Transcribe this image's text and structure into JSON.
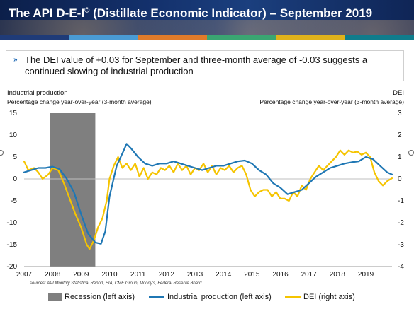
{
  "header": {
    "title_before_sup": "The API D-E-I",
    "title_sup": "©",
    "title_after_sup": " (Distillate Economic Indicator) – September 2019"
  },
  "colors": {
    "band": [
      "#1f3b78",
      "#4a9bd4",
      "#e07b2a",
      "#3aa672",
      "#e0b21b",
      "#0f7c8c"
    ],
    "industrial": "#1f77b4",
    "dei": "#f5c400",
    "recession": "#7f7f7f"
  },
  "summary": {
    "text": "The DEI value of +0.03 for September and three-month average of -0.03 suggests a continued slowing of industrial production"
  },
  "left_axis": {
    "title": "Industrial production",
    "subtitle": "Percentage change year-over-year (3-month average)"
  },
  "right_axis": {
    "title": "DEI",
    "subtitle": "Percentage change year-over-year (3-month average)"
  },
  "sources": "sources: API Monthly Statistical Report, EIA, CME Group, Moody's, Federal Reserve Board",
  "legend": {
    "recession": "Recession (left axis)",
    "industrial": "Industrial production (left axis)",
    "dei": "DEI (right axis)"
  },
  "chart_data": {
    "type": "line",
    "x_range": [
      2007,
      2019.92
    ],
    "x_ticks": [
      "2007",
      "2008",
      "2009",
      "2010",
      "2011",
      "2012",
      "2013",
      "2014",
      "2015",
      "2016",
      "2017",
      "2018",
      "2019"
    ],
    "left_ylim": [
      -20,
      15
    ],
    "left_ticks": [
      "15",
      "10",
      "5",
      "0",
      "-5",
      "-10",
      "-15",
      "-20"
    ],
    "right_ylim": [
      -4,
      3
    ],
    "right_ticks": [
      "3",
      "2",
      "1",
      "0",
      "-1",
      "-2",
      "-3",
      "-4"
    ],
    "recession": {
      "start": 2007.92,
      "end": 2009.5
    },
    "series": [
      {
        "name": "Industrial production (left axis)",
        "axis": "left",
        "points": [
          [
            2007.0,
            1.5
          ],
          [
            2007.25,
            2.0
          ],
          [
            2007.5,
            2.5
          ],
          [
            2007.75,
            2.5
          ],
          [
            2008.0,
            2.8
          ],
          [
            2008.25,
            2.2
          ],
          [
            2008.5,
            0.0
          ],
          [
            2008.75,
            -3.0
          ],
          [
            2009.0,
            -8.0
          ],
          [
            2009.25,
            -12.5
          ],
          [
            2009.5,
            -14.5
          ],
          [
            2009.7,
            -14.8
          ],
          [
            2009.85,
            -12.0
          ],
          [
            2010.0,
            -4.0
          ],
          [
            2010.25,
            3.0
          ],
          [
            2010.5,
            6.5
          ],
          [
            2010.6,
            8.0
          ],
          [
            2010.75,
            7.0
          ],
          [
            2011.0,
            5.0
          ],
          [
            2011.25,
            3.5
          ],
          [
            2011.5,
            3.0
          ],
          [
            2011.75,
            3.5
          ],
          [
            2012.0,
            3.5
          ],
          [
            2012.25,
            4.0
          ],
          [
            2012.5,
            3.5
          ],
          [
            2012.75,
            3.0
          ],
          [
            2013.0,
            2.5
          ],
          [
            2013.25,
            2.0
          ],
          [
            2013.5,
            2.5
          ],
          [
            2013.75,
            3.0
          ],
          [
            2014.0,
            3.0
          ],
          [
            2014.25,
            3.5
          ],
          [
            2014.5,
            4.0
          ],
          [
            2014.75,
            4.2
          ],
          [
            2015.0,
            3.5
          ],
          [
            2015.25,
            2.0
          ],
          [
            2015.5,
            1.0
          ],
          [
            2015.75,
            -1.0
          ],
          [
            2016.0,
            -2.0
          ],
          [
            2016.25,
            -3.5
          ],
          [
            2016.5,
            -3.0
          ],
          [
            2016.75,
            -2.5
          ],
          [
            2017.0,
            -1.0
          ],
          [
            2017.25,
            0.5
          ],
          [
            2017.5,
            1.5
          ],
          [
            2017.75,
            2.5
          ],
          [
            2018.0,
            3.0
          ],
          [
            2018.25,
            3.5
          ],
          [
            2018.5,
            3.8
          ],
          [
            2018.75,
            4.0
          ],
          [
            2019.0,
            5.0
          ],
          [
            2019.25,
            4.5
          ],
          [
            2019.5,
            3.0
          ],
          [
            2019.75,
            1.5
          ],
          [
            2019.92,
            1.0
          ]
        ]
      },
      {
        "name": "DEI (right axis)",
        "axis": "right",
        "points": [
          [
            2007.0,
            0.8
          ],
          [
            2007.15,
            0.4
          ],
          [
            2007.35,
            0.5
          ],
          [
            2007.5,
            0.3
          ],
          [
            2007.65,
            0.0
          ],
          [
            2007.85,
            0.2
          ],
          [
            2008.0,
            0.5
          ],
          [
            2008.2,
            0.4
          ],
          [
            2008.4,
            -0.2
          ],
          [
            2008.6,
            -0.9
          ],
          [
            2008.8,
            -1.6
          ],
          [
            2009.0,
            -2.2
          ],
          [
            2009.2,
            -3.0
          ],
          [
            2009.3,
            -3.2
          ],
          [
            2009.45,
            -2.8
          ],
          [
            2009.6,
            -2.2
          ],
          [
            2009.75,
            -1.8
          ],
          [
            2009.9,
            -1.0
          ],
          [
            2010.0,
            0.0
          ],
          [
            2010.15,
            0.6
          ],
          [
            2010.3,
            1.0
          ],
          [
            2010.45,
            0.5
          ],
          [
            2010.6,
            0.7
          ],
          [
            2010.75,
            0.4
          ],
          [
            2010.9,
            0.7
          ],
          [
            2011.05,
            0.1
          ],
          [
            2011.2,
            0.5
          ],
          [
            2011.35,
            0.0
          ],
          [
            2011.5,
            0.3
          ],
          [
            2011.65,
            0.2
          ],
          [
            2011.8,
            0.5
          ],
          [
            2011.95,
            0.4
          ],
          [
            2012.1,
            0.6
          ],
          [
            2012.25,
            0.3
          ],
          [
            2012.4,
            0.7
          ],
          [
            2012.55,
            0.4
          ],
          [
            2012.7,
            0.6
          ],
          [
            2012.85,
            0.2
          ],
          [
            2013.0,
            0.5
          ],
          [
            2013.15,
            0.4
          ],
          [
            2013.3,
            0.7
          ],
          [
            2013.45,
            0.3
          ],
          [
            2013.6,
            0.6
          ],
          [
            2013.75,
            0.2
          ],
          [
            2013.9,
            0.5
          ],
          [
            2014.05,
            0.4
          ],
          [
            2014.2,
            0.6
          ],
          [
            2014.35,
            0.3
          ],
          [
            2014.5,
            0.5
          ],
          [
            2014.65,
            0.6
          ],
          [
            2014.8,
            0.2
          ],
          [
            2014.95,
            -0.5
          ],
          [
            2015.1,
            -0.8
          ],
          [
            2015.25,
            -0.6
          ],
          [
            2015.4,
            -0.5
          ],
          [
            2015.55,
            -0.5
          ],
          [
            2015.7,
            -0.8
          ],
          [
            2015.85,
            -0.6
          ],
          [
            2016.0,
            -0.9
          ],
          [
            2016.15,
            -0.9
          ],
          [
            2016.3,
            -1.0
          ],
          [
            2016.45,
            -0.6
          ],
          [
            2016.6,
            -0.8
          ],
          [
            2016.75,
            -0.3
          ],
          [
            2016.9,
            -0.5
          ],
          [
            2017.05,
            0.0
          ],
          [
            2017.2,
            0.3
          ],
          [
            2017.35,
            0.6
          ],
          [
            2017.5,
            0.4
          ],
          [
            2017.65,
            0.6
          ],
          [
            2017.8,
            0.8
          ],
          [
            2017.95,
            1.0
          ],
          [
            2018.1,
            1.3
          ],
          [
            2018.25,
            1.1
          ],
          [
            2018.4,
            1.3
          ],
          [
            2018.55,
            1.2
          ],
          [
            2018.7,
            1.25
          ],
          [
            2018.85,
            1.1
          ],
          [
            2019.0,
            1.2
          ],
          [
            2019.15,
            1.0
          ],
          [
            2019.3,
            0.3
          ],
          [
            2019.45,
            -0.1
          ],
          [
            2019.6,
            -0.3
          ],
          [
            2019.75,
            -0.1
          ],
          [
            2019.92,
            0.03
          ]
        ]
      }
    ]
  }
}
